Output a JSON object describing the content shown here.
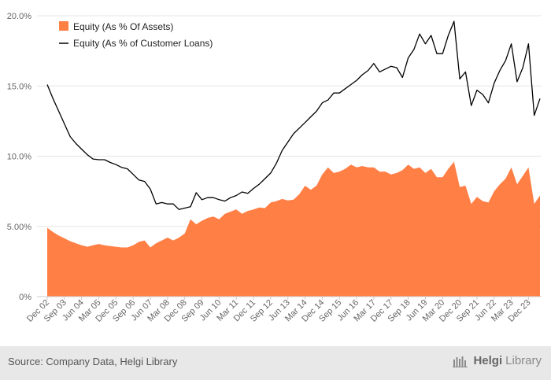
{
  "chart_data": {
    "type": "area",
    "title": "",
    "xlabel": "",
    "ylabel": "",
    "ylim": [
      0,
      20
    ],
    "y_ticks": [
      "0%",
      "5.00%",
      "10.0%",
      "15.0%",
      "20.0%"
    ],
    "x_tick_labels": [
      "Dec 02",
      "Sep 03",
      "Jun 04",
      "Mar 05",
      "Dec 05",
      "Sep 06",
      "Jun 07",
      "Mar 08",
      "Dec 08",
      "Sep 09",
      "Jun 10",
      "Mar 11",
      "Dec 11",
      "Sep 12",
      "Jun 13",
      "Mar 14",
      "Dec 14",
      "Sep 15",
      "Jun 16",
      "Mar 17",
      "Dec 17",
      "Sep 18",
      "Jun 19",
      "Mar 20",
      "Dec 20",
      "Sep 21",
      "Jun 22",
      "Mar 23",
      "Dec 23"
    ],
    "grid": true,
    "legend_position": "top-left",
    "x_start": "Dec 02",
    "x_step": "quarter",
    "series": [
      {
        "name": "Equity (As % Of Assets)",
        "style": "area",
        "color": "#ff7f45",
        "values": [
          4.9,
          4.6,
          4.35,
          4.15,
          3.95,
          3.8,
          3.65,
          3.55,
          3.65,
          3.75,
          3.65,
          3.6,
          3.55,
          3.5,
          3.5,
          3.65,
          3.9,
          4.0,
          3.5,
          3.8,
          4.0,
          4.2,
          4.0,
          4.2,
          4.5,
          5.5,
          5.15,
          5.4,
          5.6,
          5.7,
          5.5,
          5.9,
          6.05,
          6.2,
          5.9,
          6.1,
          6.2,
          6.35,
          6.3,
          6.7,
          6.8,
          6.95,
          6.85,
          6.9,
          7.3,
          7.9,
          7.6,
          7.9,
          8.7,
          9.2,
          8.8,
          8.9,
          9.1,
          9.4,
          9.2,
          9.3,
          9.2,
          9.2,
          8.9,
          8.9,
          8.7,
          8.8,
          9.0,
          9.4,
          9.1,
          9.2,
          8.8,
          9.1,
          8.5,
          8.5,
          9.1,
          9.6,
          7.8,
          7.9,
          6.6,
          7.1,
          6.8,
          6.7,
          7.5,
          8.0,
          8.4,
          9.2,
          8.0,
          8.6,
          9.2,
          6.6,
          7.2
        ]
      },
      {
        "name": "Equity (As % of Customer Loans)",
        "style": "line",
        "color": "#000000",
        "values": [
          15.1,
          14.1,
          13.2,
          12.3,
          11.4,
          10.9,
          10.5,
          10.1,
          9.8,
          9.75,
          9.75,
          9.55,
          9.4,
          9.2,
          9.1,
          8.7,
          8.3,
          8.2,
          7.65,
          6.6,
          6.7,
          6.6,
          6.6,
          6.2,
          6.3,
          6.4,
          7.4,
          6.9,
          7.05,
          7.05,
          6.9,
          6.8,
          7.05,
          7.2,
          7.45,
          7.35,
          7.7,
          8.0,
          8.4,
          8.8,
          9.5,
          10.4,
          11.0,
          11.6,
          12.0,
          12.4,
          12.8,
          13.2,
          13.8,
          14.0,
          14.5,
          14.5,
          14.8,
          15.1,
          15.4,
          15.8,
          16.1,
          16.6,
          16.0,
          16.2,
          16.4,
          16.3,
          15.6,
          17.0,
          17.6,
          18.7,
          18.0,
          18.6,
          17.3,
          17.3,
          18.6,
          19.6,
          15.5,
          16.0,
          13.6,
          14.7,
          14.4,
          13.8,
          15.2,
          16.1,
          16.8,
          18.0,
          15.3,
          16.3,
          18.0,
          12.9,
          14.1
        ]
      }
    ]
  },
  "footer": {
    "source": "Source: Company Data, Helgi Library",
    "brand_bold": "Helgi",
    "brand_light": "Library"
  }
}
